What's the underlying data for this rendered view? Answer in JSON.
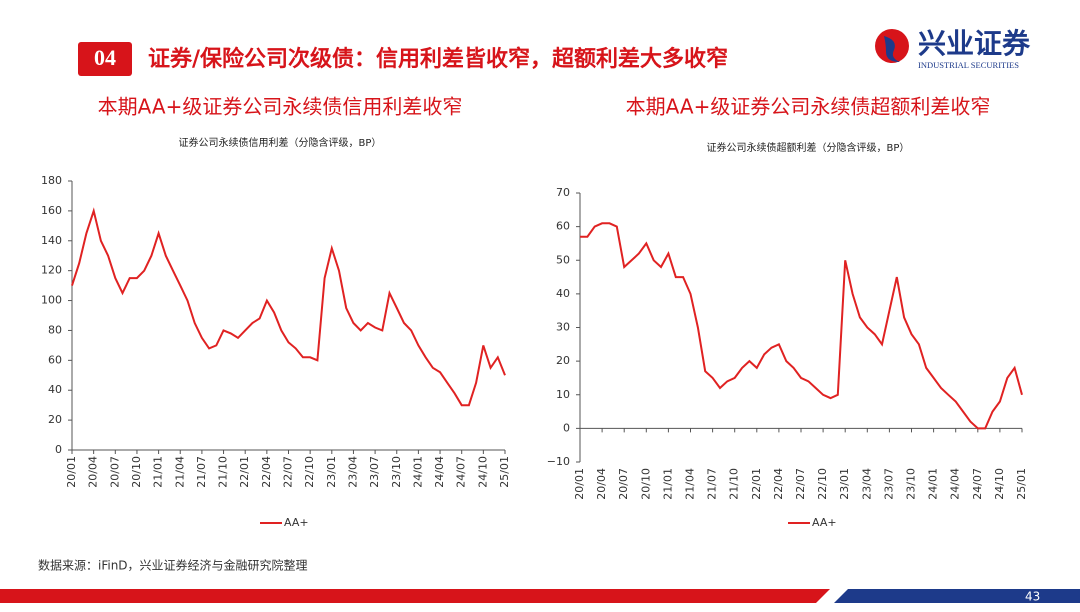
{
  "header": {
    "number": "04",
    "title": "证券/保险公司次级债：信用利差皆收窄，超额利差大多收窄",
    "logo": "兴业证券",
    "logo_en": "INDUSTRIAL SECURITIES"
  },
  "chart_data": [
    {
      "type": "line",
      "heading": "本期AA+级证券公司永续债信用利差收窄",
      "title": "证券公司永续债信用利差（分隐含评级，BP）",
      "categories": [
        "20/01",
        null,
        null,
        "20/04",
        null,
        null,
        "20/07",
        null,
        null,
        "20/10",
        null,
        null,
        "21/01",
        null,
        null,
        "21/04",
        null,
        null,
        "21/07",
        null,
        null,
        "21/10",
        null,
        null,
        "22/01",
        null,
        null,
        "22/04",
        null,
        null,
        "22/07",
        null,
        null,
        "22/10",
        null,
        null,
        "23/01",
        null,
        null,
        "23/04",
        null,
        null,
        "23/07",
        null,
        null,
        "23/10",
        null,
        null,
        "24/01",
        null,
        null,
        "24/04",
        null,
        null,
        "24/07",
        null,
        null,
        "24/10",
        null,
        null,
        "25/01"
      ],
      "series": [
        {
          "name": "AA+",
          "color": "#e02222",
          "values": [
            110,
            125,
            145,
            160,
            140,
            130,
            115,
            105,
            115,
            115,
            120,
            130,
            145,
            130,
            120,
            110,
            100,
            85,
            75,
            68,
            70,
            80,
            78,
            75,
            80,
            85,
            88,
            100,
            92,
            80,
            72,
            68,
            62,
            62,
            60,
            115,
            135,
            120,
            95,
            85,
            80,
            85,
            82,
            80,
            105,
            95,
            85,
            80,
            70,
            62,
            55,
            52,
            45,
            38,
            30,
            30,
            45,
            70,
            55,
            62,
            50
          ]
        }
      ],
      "ylim": [
        0,
        180
      ],
      "yticks": [
        0,
        20,
        40,
        60,
        80,
        100,
        120,
        140,
        160,
        180
      ]
    },
    {
      "type": "line",
      "heading": "本期AA+级证券公司永续债超额利差收窄",
      "title": "证券公司永续债超额利差（分隐含评级，BP）",
      "categories": [
        "20/01",
        null,
        null,
        "20/04",
        null,
        null,
        "20/07",
        null,
        null,
        "20/10",
        null,
        null,
        "21/01",
        null,
        null,
        "21/04",
        null,
        null,
        "21/07",
        null,
        null,
        "21/10",
        null,
        null,
        "22/01",
        null,
        null,
        "22/04",
        null,
        null,
        "22/07",
        null,
        null,
        "22/10",
        null,
        null,
        "23/01",
        null,
        null,
        "23/04",
        null,
        null,
        "23/07",
        null,
        null,
        "23/10",
        null,
        null,
        "24/01",
        null,
        null,
        "24/04",
        null,
        null,
        "24/07",
        null,
        null,
        "24/10",
        null,
        null,
        "25/01"
      ],
      "series": [
        {
          "name": "AA+",
          "color": "#e02222",
          "values": [
            57,
            57,
            60,
            61,
            61,
            60,
            48,
            50,
            52,
            55,
            50,
            48,
            52,
            45,
            45,
            40,
            30,
            17,
            15,
            12,
            14,
            15,
            18,
            20,
            18,
            22,
            24,
            25,
            20,
            18,
            15,
            14,
            12,
            10,
            9,
            10,
            50,
            40,
            33,
            30,
            28,
            25,
            35,
            45,
            33,
            28,
            25,
            18,
            15,
            12,
            10,
            8,
            5,
            2,
            0,
            0,
            5,
            8,
            15,
            18,
            10
          ]
        }
      ],
      "ylim": [
        -10,
        70
      ],
      "yticks": [
        {
          "value": -10,
          "label": "−10"
        },
        0,
        10,
        20,
        30,
        40,
        50,
        60,
        70
      ]
    }
  ],
  "source": "数据来源：iFinD，兴业证券经济与金融研究院整理",
  "page_number": "43"
}
